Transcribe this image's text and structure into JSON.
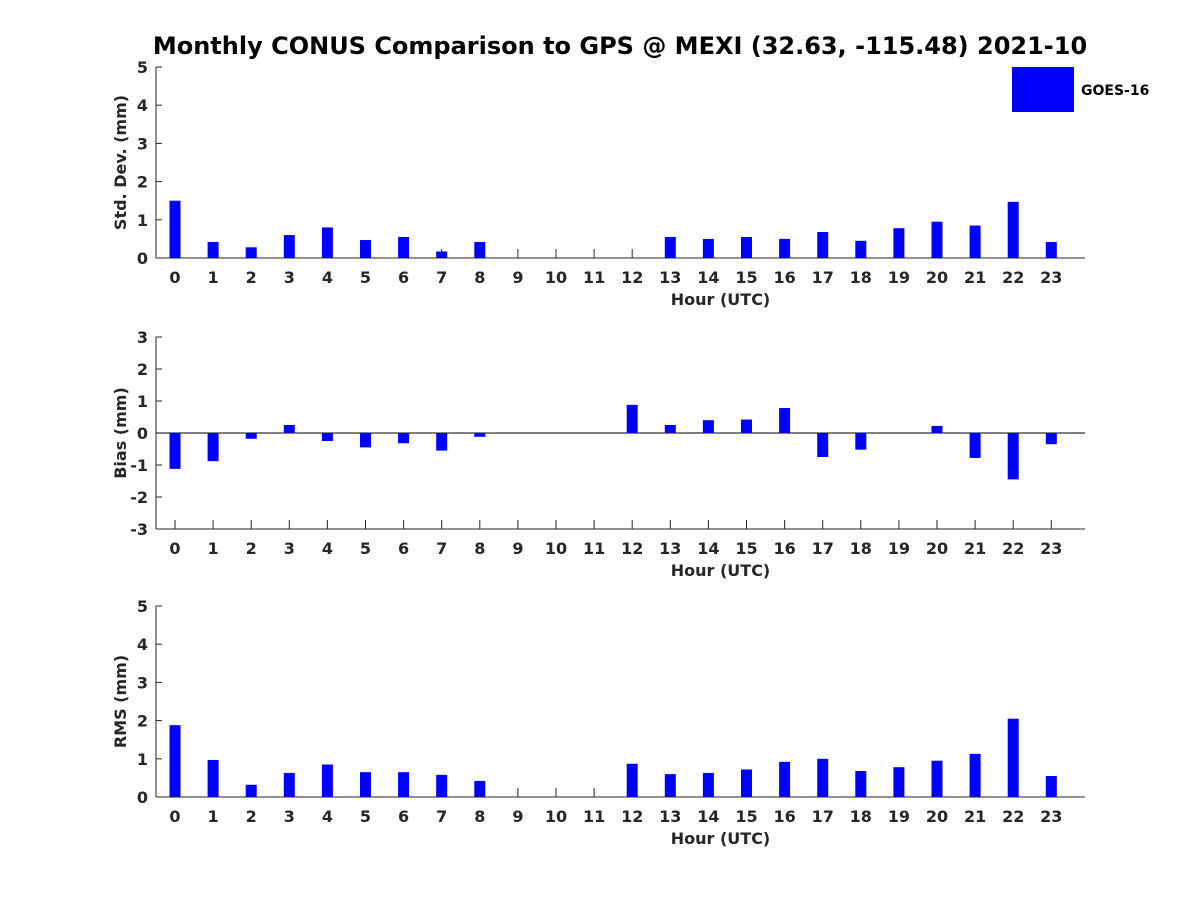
{
  "title": "Monthly CONUS Comparison to GPS @ MEXI (32.63, -115.48) 2021-10",
  "legend": {
    "label": "GOES-16",
    "color": "#0000ff",
    "position": "top-right"
  },
  "chart_data": [
    {
      "type": "bar",
      "title": "",
      "xlabel": "Hour (UTC)",
      "ylabel": "Std. Dev. (mm)",
      "categories": [
        "0",
        "1",
        "2",
        "3",
        "4",
        "5",
        "6",
        "7",
        "8",
        "9",
        "10",
        "11",
        "12",
        "13",
        "14",
        "15",
        "16",
        "17",
        "18",
        "19",
        "20",
        "21",
        "22",
        "23"
      ],
      "series": [
        {
          "name": "GOES-16",
          "color": "#0000ff",
          "values": [
            1.5,
            0.42,
            0.28,
            0.6,
            0.8,
            0.47,
            0.55,
            0.17,
            0.42,
            null,
            null,
            null,
            null,
            0.55,
            0.5,
            0.55,
            0.5,
            0.68,
            0.45,
            0.78,
            0.95,
            0.85,
            1.47,
            0.42
          ]
        }
      ],
      "ylim": [
        0,
        5
      ],
      "yticks": [
        0,
        1,
        2,
        3,
        4,
        5
      ],
      "grid": false
    },
    {
      "type": "bar",
      "title": "",
      "xlabel": "Hour (UTC)",
      "ylabel": "Bias (mm)",
      "categories": [
        "0",
        "1",
        "2",
        "3",
        "4",
        "5",
        "6",
        "7",
        "8",
        "9",
        "10",
        "11",
        "12",
        "13",
        "14",
        "15",
        "16",
        "17",
        "18",
        "19",
        "20",
        "21",
        "22",
        "23"
      ],
      "series": [
        {
          "name": "GOES-16",
          "color": "#0000ff",
          "values": [
            -1.12,
            -0.88,
            -0.18,
            0.25,
            -0.25,
            -0.45,
            -0.32,
            -0.55,
            -0.12,
            null,
            null,
            null,
            0.88,
            0.25,
            0.4,
            0.42,
            0.78,
            -0.75,
            -0.52,
            null,
            0.22,
            -0.78,
            -1.45,
            -0.35
          ]
        }
      ],
      "ylim": [
        -3,
        3
      ],
      "yticks": [
        -3,
        -2,
        -1,
        0,
        1,
        2,
        3
      ],
      "grid": false
    },
    {
      "type": "bar",
      "title": "",
      "xlabel": "Hour (UTC)",
      "ylabel": "RMS (mm)",
      "categories": [
        "0",
        "1",
        "2",
        "3",
        "4",
        "5",
        "6",
        "7",
        "8",
        "9",
        "10",
        "11",
        "12",
        "13",
        "14",
        "15",
        "16",
        "17",
        "18",
        "19",
        "20",
        "21",
        "22",
        "23"
      ],
      "series": [
        {
          "name": "GOES-16",
          "color": "#0000ff",
          "values": [
            1.88,
            0.97,
            0.32,
            0.63,
            0.85,
            0.65,
            0.65,
            0.58,
            0.42,
            null,
            null,
            null,
            0.87,
            0.6,
            0.63,
            0.72,
            0.92,
            1.0,
            0.68,
            0.78,
            0.95,
            1.13,
            2.05,
            0.55
          ]
        }
      ],
      "ylim": [
        0,
        5
      ],
      "yticks": [
        0,
        1,
        2,
        3,
        4,
        5
      ],
      "grid": false
    }
  ]
}
